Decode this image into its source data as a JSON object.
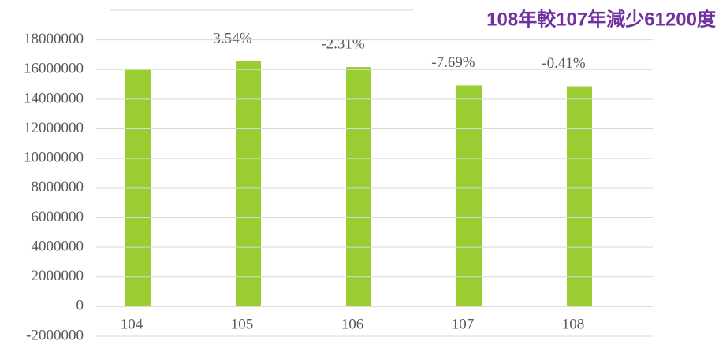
{
  "chart_data": {
    "type": "bar",
    "title": "108年較107年減少61200度",
    "categories": [
      "104",
      "105",
      "106",
      "107",
      "108"
    ],
    "values": [
      15990000,
      16550000,
      16170000,
      14930000,
      14870000
    ],
    "annotations": [
      null,
      "3.54%",
      "-2.31%",
      "-7.69%",
      "-0.41%"
    ],
    "color": "#9acd32",
    "ylim": [
      -2000000,
      20000000
    ],
    "yticks": [
      -2000000,
      0,
      2000000,
      4000000,
      6000000,
      8000000,
      10000000,
      12000000,
      14000000,
      16000000,
      18000000
    ],
    "grid": true
  }
}
